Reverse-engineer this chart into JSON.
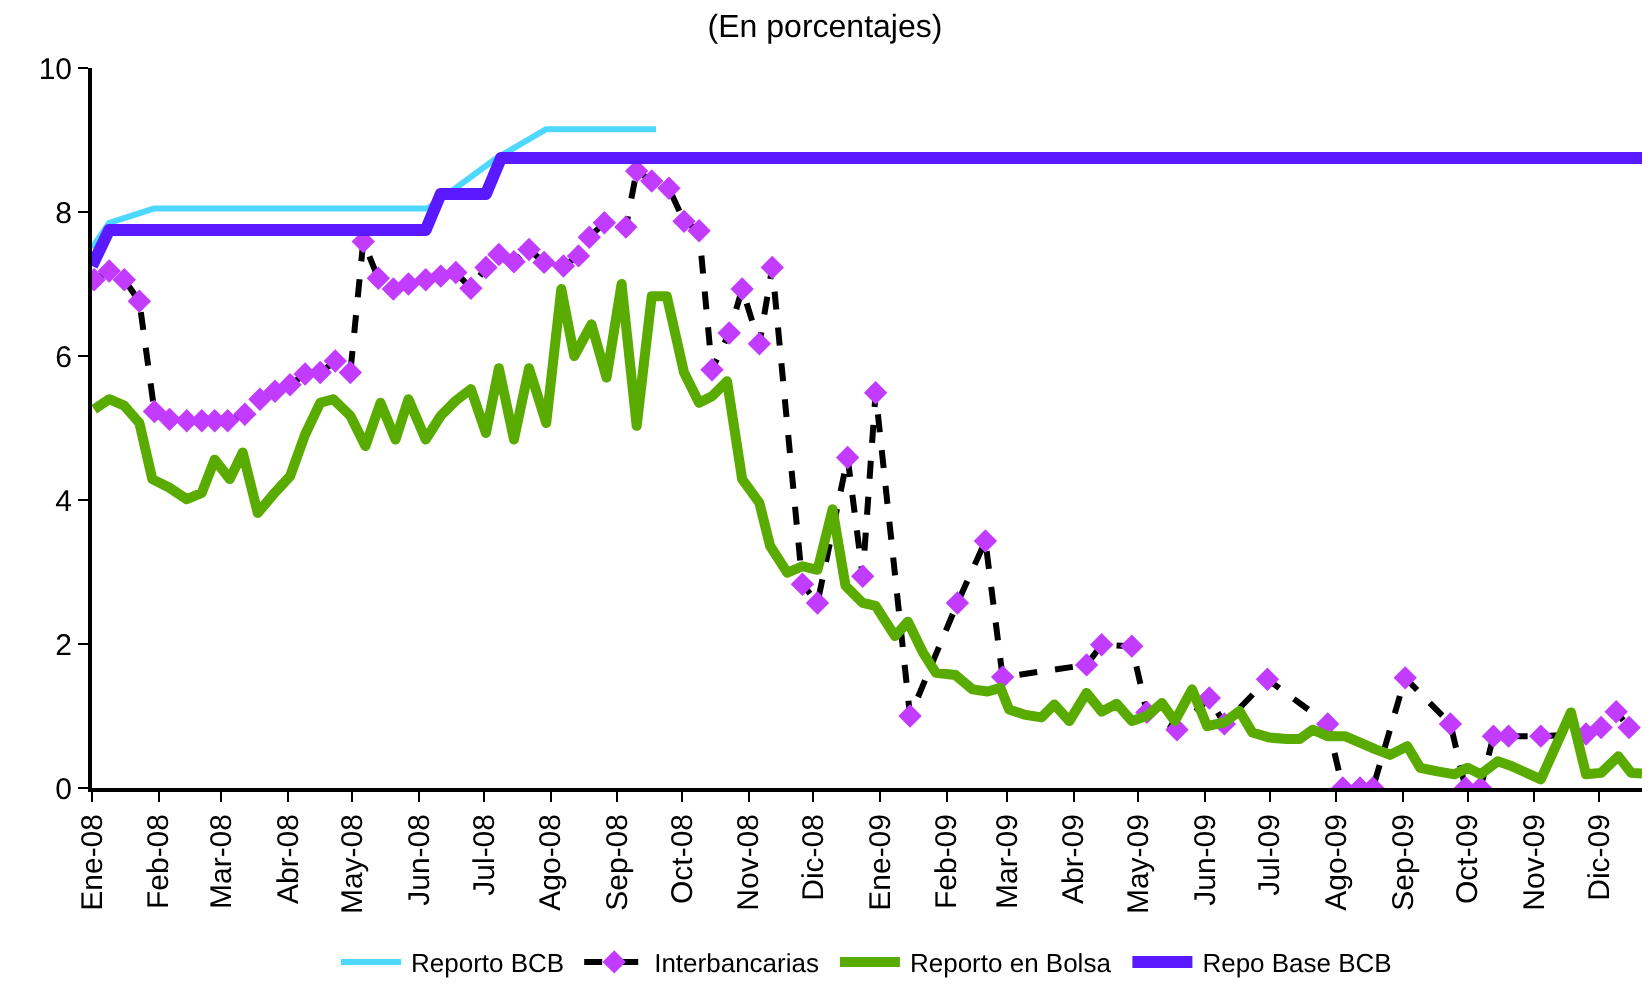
{
  "chart_data": {
    "type": "line",
    "title": "(En porcentajes)",
    "xlim": [
      "2008-01-01",
      "2009-12-21"
    ],
    "ylim": [
      0,
      10
    ],
    "yticks": [
      0,
      2,
      4,
      6,
      8,
      10
    ],
    "xticks": [
      {
        "value": "2008-01-01",
        "label": "Ene-08"
      },
      {
        "value": "2008-02-01",
        "label": "Feb-08"
      },
      {
        "value": "2008-03-01",
        "label": "Mar-08"
      },
      {
        "value": "2008-04-01",
        "label": "Abr-08"
      },
      {
        "value": "2008-05-01",
        "label": "May-08"
      },
      {
        "value": "2008-06-01",
        "label": "Jun-08"
      },
      {
        "value": "2008-07-01",
        "label": "Jul-08"
      },
      {
        "value": "2008-08-01",
        "label": "Ago-08"
      },
      {
        "value": "2008-09-01",
        "label": "Sep-08"
      },
      {
        "value": "2008-10-01",
        "label": "Oct-08"
      },
      {
        "value": "2008-11-01",
        "label": "Nov-08"
      },
      {
        "value": "2008-12-01",
        "label": "Dic-08"
      },
      {
        "value": "2009-01-01",
        "label": "Ene-09"
      },
      {
        "value": "2009-02-01",
        "label": "Feb-09"
      },
      {
        "value": "2009-03-01",
        "label": "Mar-09"
      },
      {
        "value": "2009-04-01",
        "label": "Abr-09"
      },
      {
        "value": "2009-05-01",
        "label": "May-09"
      },
      {
        "value": "2009-06-01",
        "label": "Jun-09"
      },
      {
        "value": "2009-07-01",
        "label": "Jul-09"
      },
      {
        "value": "2009-08-01",
        "label": "Ago-09"
      },
      {
        "value": "2009-09-01",
        "label": "Sep-09"
      },
      {
        "value": "2009-10-01",
        "label": "Oct-09"
      },
      {
        "value": "2009-11-01",
        "label": "Nov-09"
      },
      {
        "value": "2009-12-01",
        "label": "Dic-09"
      }
    ],
    "legend": "bottom",
    "series": [
      {
        "name": "Reporto BCB",
        "color": "#4dd8ff",
        "line_style": "solid",
        "marker": "none",
        "x": [
          "2008-01-01",
          "2008-01-09",
          "2008-01-30",
          "2008-06-05",
          "2008-07-07",
          "2008-07-30",
          "2008-09-19"
        ],
        "values": [
          7.5,
          7.85,
          8.05,
          8.05,
          8.75,
          9.15,
          9.15
        ]
      },
      {
        "name": "Interbancarias",
        "color": "#c23cff",
        "line_style": "dashed",
        "marker": "diamond",
        "x": [
          "2008-01-02",
          "2008-01-09",
          "2008-01-16",
          "2008-01-23",
          "2008-01-30",
          "2008-02-06",
          "2008-02-14",
          "2008-02-21",
          "2008-02-27",
          "2008-03-04",
          "2008-03-12",
          "2008-03-19",
          "2008-03-26",
          "2008-04-02",
          "2008-04-09",
          "2008-04-16",
          "2008-04-23",
          "2008-04-30",
          "2008-05-06",
          "2008-05-13",
          "2008-05-20",
          "2008-05-27",
          "2008-06-04",
          "2008-06-11",
          "2008-06-18",
          "2008-06-25",
          "2008-07-02",
          "2008-07-08",
          "2008-07-15",
          "2008-07-22",
          "2008-07-29",
          "2008-08-07",
          "2008-08-14",
          "2008-08-19",
          "2008-08-26",
          "2008-09-05",
          "2008-09-10",
          "2008-09-17",
          "2008-09-25",
          "2008-10-02",
          "2008-10-09",
          "2008-10-15",
          "2008-10-23",
          "2008-10-29",
          "2008-11-06",
          "2008-11-12",
          "2008-11-26",
          "2008-12-03",
          "2008-12-17",
          "2008-12-24",
          "2008-12-30",
          "2009-01-15",
          "2009-02-06",
          "2009-02-19",
          "2009-02-27",
          "2009-04-07",
          "2009-04-14",
          "2009-04-28",
          "2009-05-05",
          "2009-05-19",
          "2009-06-03",
          "2009-06-10",
          "2009-06-30",
          "2009-07-28",
          "2009-08-04",
          "2009-08-12",
          "2009-08-18",
          "2009-09-02",
          "2009-09-23",
          "2009-09-30",
          "2009-10-07",
          "2009-10-13",
          "2009-10-20",
          "2009-11-04",
          "2009-11-25",
          "2009-12-02",
          "2009-12-09",
          "2009-12-15"
        ],
        "values": [
          7.06,
          7.18,
          7.06,
          6.76,
          5.23,
          5.12,
          5.1,
          5.1,
          5.1,
          5.1,
          5.19,
          5.4,
          5.51,
          5.6,
          5.75,
          5.77,
          5.93,
          5.77,
          7.59,
          7.08,
          6.93,
          7.0,
          7.06,
          7.11,
          7.16,
          6.94,
          7.23,
          7.41,
          7.31,
          7.48,
          7.3,
          7.25,
          7.39,
          7.65,
          7.85,
          7.79,
          8.57,
          8.43,
          8.33,
          7.87,
          7.74,
          5.81,
          6.32,
          6.93,
          6.17,
          7.23,
          2.83,
          2.57,
          4.59,
          2.94,
          5.49,
          1.0,
          2.57,
          3.43,
          1.54,
          1.71,
          1.99,
          1.97,
          1.05,
          0.81,
          1.25,
          0.89,
          1.51,
          0.89,
          0,
          0,
          0,
          1.53,
          0.89,
          0,
          0,
          0.72,
          0.72,
          0.72,
          0.75,
          0.84,
          1.06,
          0.84
        ]
      },
      {
        "name": "Reporto en Bolsa",
        "color": "#5aab00",
        "line_style": "solid",
        "marker": "none",
        "x": [
          "2008-01-02",
          "2008-01-09",
          "2008-01-16",
          "2008-01-23",
          "2008-01-29",
          "2008-02-06",
          "2008-02-14",
          "2008-02-21",
          "2008-02-27",
          "2008-03-05",
          "2008-03-11",
          "2008-03-18",
          "2008-03-25",
          "2008-04-02",
          "2008-04-09",
          "2008-04-16",
          "2008-04-22",
          "2008-04-30",
          "2008-05-07",
          "2008-05-14",
          "2008-05-21",
          "2008-05-27",
          "2008-06-04",
          "2008-06-11",
          "2008-06-18",
          "2008-06-25",
          "2008-07-02",
          "2008-07-08",
          "2008-07-15",
          "2008-07-22",
          "2008-07-30",
          "2008-08-06",
          "2008-08-12",
          "2008-08-20",
          "2008-08-27",
          "2008-09-03",
          "2008-09-10",
          "2008-09-17",
          "2008-09-24",
          "2008-10-02",
          "2008-10-09",
          "2008-10-15",
          "2008-10-22",
          "2008-10-29",
          "2008-11-06",
          "2008-11-11",
          "2008-11-19",
          "2008-11-26",
          "2008-12-03",
          "2008-12-10",
          "2008-12-16",
          "2008-12-24",
          "2008-12-30",
          "2009-01-08",
          "2009-01-14",
          "2009-01-21",
          "2009-01-27",
          "2009-02-05",
          "2009-02-13",
          "2009-02-20",
          "2009-02-26",
          "2009-03-02",
          "2009-03-09",
          "2009-03-17",
          "2009-03-23",
          "2009-03-30",
          "2009-04-07",
          "2009-04-14",
          "2009-04-21",
          "2009-04-28",
          "2009-05-05",
          "2009-05-12",
          "2009-05-18",
          "2009-05-26",
          "2009-06-02",
          "2009-06-10",
          "2009-06-17",
          "2009-06-23",
          "2009-07-01",
          "2009-07-09",
          "2009-07-15",
          "2009-07-21",
          "2009-07-28",
          "2009-08-05",
          "2009-08-12",
          "2009-08-19",
          "2009-08-26",
          "2009-09-03",
          "2009-09-09",
          "2009-09-17",
          "2009-09-25",
          "2009-10-01",
          "2009-10-07",
          "2009-10-15",
          "2009-10-21",
          "2009-11-04",
          "2009-11-18",
          "2009-11-25",
          "2009-12-02",
          "2009-12-10",
          "2009-12-16",
          "2009-12-21"
        ],
        "values": [
          5.26,
          5.4,
          5.31,
          5.07,
          4.29,
          4.17,
          4.01,
          4.1,
          4.56,
          4.29,
          4.66,
          3.82,
          4.07,
          4.33,
          4.91,
          5.35,
          5.4,
          5.17,
          4.75,
          5.35,
          4.84,
          5.4,
          4.84,
          5.17,
          5.38,
          5.54,
          4.93,
          5.83,
          4.84,
          5.83,
          5.07,
          6.93,
          6.0,
          6.44,
          5.7,
          7.0,
          5.03,
          6.83,
          6.83,
          5.77,
          5.35,
          5.44,
          5.65,
          4.29,
          3.96,
          3.36,
          2.99,
          3.08,
          3.03,
          3.87,
          2.81,
          2.57,
          2.53,
          2.11,
          2.31,
          1.88,
          1.6,
          1.57,
          1.37,
          1.34,
          1.39,
          1.09,
          1.02,
          0.98,
          1.16,
          0.93,
          1.32,
          1.06,
          1.17,
          0.93,
          1.0,
          1.18,
          0.93,
          1.37,
          0.86,
          0.91,
          1.07,
          0.77,
          0.7,
          0.68,
          0.68,
          0.81,
          0.72,
          0.72,
          0.63,
          0.54,
          0.46,
          0.58,
          0.28,
          0.23,
          0.19,
          0.28,
          0.19,
          0.37,
          0.31,
          0.12,
          1.05,
          0.19,
          0.21,
          0.44,
          0.21,
          0.2
        ]
      },
      {
        "name": "Repo Base BCB",
        "color": "#5a1aff",
        "line_style": "solid",
        "marker": "none",
        "x": [
          "2008-01-01",
          "2008-01-09",
          "2008-06-04",
          "2008-06-11",
          "2008-07-02",
          "2008-07-09",
          "2009-12-21"
        ],
        "values": [
          7.25,
          7.75,
          7.75,
          8.25,
          8.25,
          8.75,
          8.75
        ]
      }
    ]
  }
}
